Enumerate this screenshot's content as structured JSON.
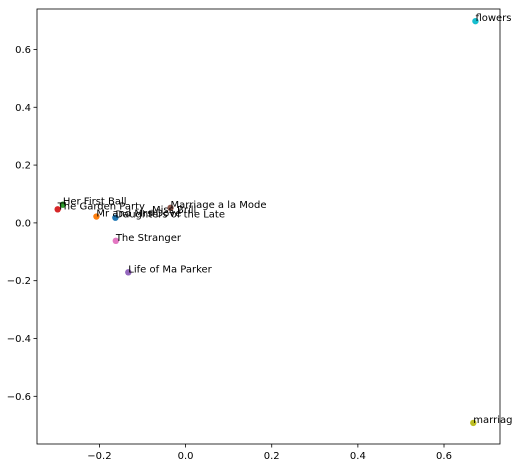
{
  "chart_data": {
    "type": "scatter",
    "title": "",
    "xlabel": "",
    "ylabel": "",
    "xlim": [
      -0.345,
      0.73
    ],
    "ylim": [
      -0.765,
      0.74
    ],
    "grid": false,
    "x_ticks": [
      {
        "value": -0.2,
        "label": "−0.2"
      },
      {
        "value": 0.0,
        "label": "0.0"
      },
      {
        "value": 0.2,
        "label": "0.2"
      },
      {
        "value": 0.4,
        "label": "0.4"
      },
      {
        "value": 0.6,
        "label": "0.6"
      }
    ],
    "y_ticks": [
      {
        "value": -0.6,
        "label": "−0.6"
      },
      {
        "value": -0.4,
        "label": "−0.4"
      },
      {
        "value": -0.2,
        "label": "−0.2"
      },
      {
        "value": 0.0,
        "label": "0.0"
      },
      {
        "value": 0.2,
        "label": "0.2"
      },
      {
        "value": 0.4,
        "label": "0.4"
      },
      {
        "value": 0.6,
        "label": "0.6"
      }
    ],
    "points": [
      {
        "label": "Daughters of the Late",
        "x": -0.163,
        "y": 0.018,
        "color": "#1f77b4"
      },
      {
        "label": "Mr and Mrs Dove",
        "x": -0.207,
        "y": 0.022,
        "color": "#ff7f0e"
      },
      {
        "label": "Her First Ball",
        "x": -0.285,
        "y": 0.063,
        "color": "#2ca02c"
      },
      {
        "label": "The Garden Party",
        "x": -0.297,
        "y": 0.047,
        "color": "#d62728"
      },
      {
        "label": "Life of Ma Parker",
        "x": -0.133,
        "y": -0.171,
        "color": "#9467bd"
      },
      {
        "label": "Marriage a la Mode",
        "x": -0.035,
        "y": 0.052,
        "color": "#8c564b"
      },
      {
        "label": "The Stranger",
        "x": -0.162,
        "y": -0.062,
        "color": "#e377c2"
      },
      {
        "label": "Miss Brill",
        "x": -0.078,
        "y": 0.035,
        "color": "#7f7f7f"
      },
      {
        "label": "marriage",
        "x": 0.668,
        "y": -0.692,
        "color": "#bcbd22"
      },
      {
        "label": "flowers",
        "x": 0.673,
        "y": 0.698,
        "color": "#17becf"
      }
    ]
  }
}
